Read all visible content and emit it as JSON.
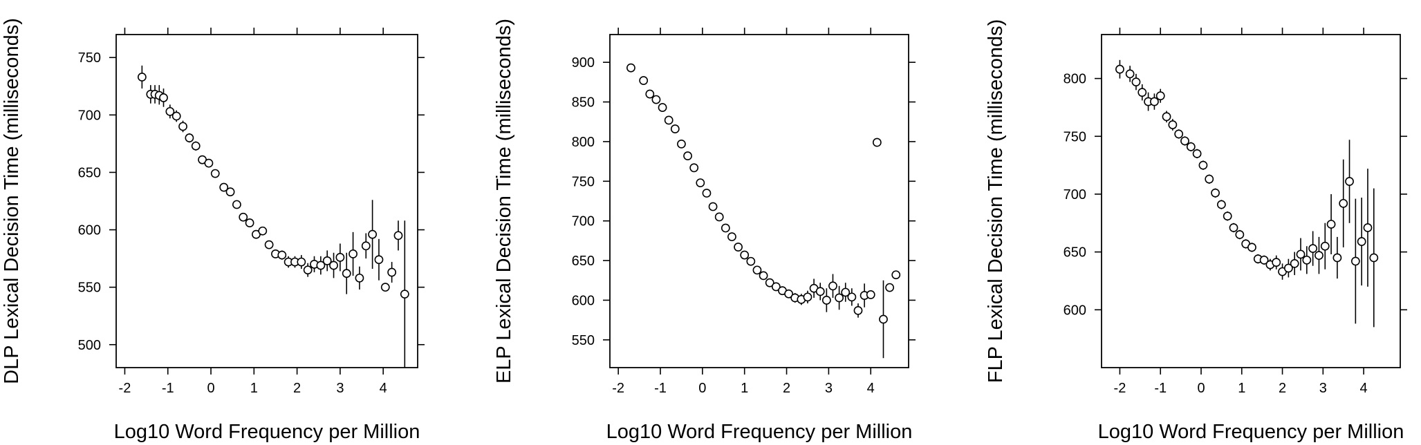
{
  "chart_data": [
    {
      "type": "scatter",
      "title": "",
      "xlabel": "Log10 Word Frequency per Million",
      "ylabel": "DLP Lexical Decision Time (milliseconds)",
      "xlim": [
        -2.2,
        4.8
      ],
      "ylim": [
        480,
        770
      ],
      "xticks": [
        "-2",
        "-1",
        "0",
        "1",
        "2",
        "3",
        "4"
      ],
      "yticks": [
        "500",
        "550",
        "600",
        "650",
        "700",
        "750"
      ],
      "points": [
        {
          "x": -1.6,
          "y": 733,
          "lo": 723,
          "hi": 743
        },
        {
          "x": -1.4,
          "y": 718,
          "lo": 710,
          "hi": 726
        },
        {
          "x": -1.3,
          "y": 718,
          "lo": 710,
          "hi": 726
        },
        {
          "x": -1.2,
          "y": 717,
          "lo": 709,
          "hi": 726
        },
        {
          "x": -1.1,
          "y": 715,
          "lo": 707,
          "hi": 723
        },
        {
          "x": -0.95,
          "y": 703,
          "lo": 697,
          "hi": 709
        },
        {
          "x": -0.8,
          "y": 699,
          "lo": 694,
          "hi": 704
        },
        {
          "x": -0.65,
          "y": 690,
          "lo": 685,
          "hi": 695
        },
        {
          "x": -0.5,
          "y": 680,
          "lo": 676,
          "hi": 684
        },
        {
          "x": -0.35,
          "y": 673,
          "lo": 669,
          "hi": 677
        },
        {
          "x": -0.2,
          "y": 661,
          "lo": 658,
          "hi": 664
        },
        {
          "x": -0.05,
          "y": 658,
          "lo": 655,
          "hi": 661
        },
        {
          "x": 0.1,
          "y": 649,
          "lo": 646,
          "hi": 652
        },
        {
          "x": 0.3,
          "y": 637,
          "lo": 634,
          "hi": 640
        },
        {
          "x": 0.45,
          "y": 633,
          "lo": 630,
          "hi": 636
        },
        {
          "x": 0.6,
          "y": 622,
          "lo": 619,
          "hi": 625
        },
        {
          "x": 0.75,
          "y": 611,
          "lo": 608,
          "hi": 614
        },
        {
          "x": 0.9,
          "y": 606,
          "lo": 603,
          "hi": 609
        },
        {
          "x": 1.05,
          "y": 596,
          "lo": 593,
          "hi": 599
        },
        {
          "x": 1.2,
          "y": 599,
          "lo": 596,
          "hi": 602
        },
        {
          "x": 1.35,
          "y": 587,
          "lo": 584,
          "hi": 590
        },
        {
          "x": 1.5,
          "y": 579,
          "lo": 576,
          "hi": 582
        },
        {
          "x": 1.65,
          "y": 578,
          "lo": 574,
          "hi": 582
        },
        {
          "x": 1.8,
          "y": 572,
          "lo": 567,
          "hi": 577
        },
        {
          "x": 1.95,
          "y": 572,
          "lo": 567,
          "hi": 577
        },
        {
          "x": 2.1,
          "y": 572,
          "lo": 566,
          "hi": 578
        },
        {
          "x": 2.25,
          "y": 565,
          "lo": 559,
          "hi": 571
        },
        {
          "x": 2.4,
          "y": 570,
          "lo": 563,
          "hi": 577
        },
        {
          "x": 2.55,
          "y": 569,
          "lo": 561,
          "hi": 577
        },
        {
          "x": 2.7,
          "y": 573,
          "lo": 564,
          "hi": 582
        },
        {
          "x": 2.85,
          "y": 569,
          "lo": 558,
          "hi": 580
        },
        {
          "x": 3.0,
          "y": 576,
          "lo": 564,
          "hi": 588
        },
        {
          "x": 3.15,
          "y": 562,
          "lo": 544,
          "hi": 580
        },
        {
          "x": 3.3,
          "y": 579,
          "lo": 560,
          "hi": 598
        },
        {
          "x": 3.45,
          "y": 558,
          "lo": 548,
          "hi": 568
        },
        {
          "x": 3.6,
          "y": 586,
          "lo": 575,
          "hi": 597
        },
        {
          "x": 3.75,
          "y": 596,
          "lo": 566,
          "hi": 626
        },
        {
          "x": 3.9,
          "y": 574,
          "lo": 556,
          "hi": 592
        },
        {
          "x": 4.05,
          "y": 550,
          "lo": null,
          "hi": null
        },
        {
          "x": 4.2,
          "y": 563,
          "lo": 554,
          "hi": 572
        },
        {
          "x": 4.35,
          "y": 595,
          "lo": 582,
          "hi": 608
        },
        {
          "x": 4.5,
          "y": 544,
          "lo": 480,
          "hi": 608
        }
      ]
    },
    {
      "type": "scatter",
      "title": "",
      "xlabel": "Log10 Word Frequency per Million",
      "ylabel": "ELP Lexical Decision Time (milliseconds)",
      "xlim": [
        -2.2,
        4.9
      ],
      "ylim": [
        515,
        935
      ],
      "xticks": [
        "-2",
        "-1",
        "0",
        "1",
        "2",
        "3",
        "4"
      ],
      "yticks": [
        "550",
        "600",
        "650",
        "700",
        "750",
        "800",
        "850",
        "900"
      ],
      "points": [
        {
          "x": -1.7,
          "y": 893,
          "lo": null,
          "hi": null
        },
        {
          "x": -1.4,
          "y": 877,
          "lo": null,
          "hi": null
        },
        {
          "x": -1.25,
          "y": 860,
          "lo": null,
          "hi": null
        },
        {
          "x": -1.1,
          "y": 853,
          "lo": null,
          "hi": null
        },
        {
          "x": -0.95,
          "y": 843,
          "lo": null,
          "hi": null
        },
        {
          "x": -0.8,
          "y": 827,
          "lo": null,
          "hi": null
        },
        {
          "x": -0.65,
          "y": 816,
          "lo": null,
          "hi": null
        },
        {
          "x": -0.5,
          "y": 797,
          "lo": null,
          "hi": null
        },
        {
          "x": -0.35,
          "y": 782,
          "lo": null,
          "hi": null
        },
        {
          "x": -0.2,
          "y": 767,
          "lo": null,
          "hi": null
        },
        {
          "x": -0.05,
          "y": 748,
          "lo": null,
          "hi": null
        },
        {
          "x": 0.1,
          "y": 735,
          "lo": null,
          "hi": null
        },
        {
          "x": 0.25,
          "y": 718,
          "lo": null,
          "hi": null
        },
        {
          "x": 0.4,
          "y": 705,
          "lo": null,
          "hi": null
        },
        {
          "x": 0.55,
          "y": 691,
          "lo": null,
          "hi": null
        },
        {
          "x": 0.7,
          "y": 680,
          "lo": null,
          "hi": null
        },
        {
          "x": 0.85,
          "y": 667,
          "lo": null,
          "hi": null
        },
        {
          "x": 1.0,
          "y": 657,
          "lo": null,
          "hi": null
        },
        {
          "x": 1.15,
          "y": 649,
          "lo": null,
          "hi": null
        },
        {
          "x": 1.3,
          "y": 638,
          "lo": null,
          "hi": null
        },
        {
          "x": 1.45,
          "y": 631,
          "lo": null,
          "hi": null
        },
        {
          "x": 1.6,
          "y": 622,
          "lo": null,
          "hi": null
        },
        {
          "x": 1.75,
          "y": 617,
          "lo": null,
          "hi": null
        },
        {
          "x": 1.9,
          "y": 612,
          "lo": null,
          "hi": null
        },
        {
          "x": 2.05,
          "y": 608,
          "lo": 603,
          "hi": 613
        },
        {
          "x": 2.2,
          "y": 603,
          "lo": 597,
          "hi": 609
        },
        {
          "x": 2.35,
          "y": 601,
          "lo": 594,
          "hi": 608
        },
        {
          "x": 2.5,
          "y": 604,
          "lo": 596,
          "hi": 612
        },
        {
          "x": 2.65,
          "y": 615,
          "lo": 603,
          "hi": 627
        },
        {
          "x": 2.8,
          "y": 611,
          "lo": 600,
          "hi": 622
        },
        {
          "x": 2.95,
          "y": 600,
          "lo": 585,
          "hi": 615
        },
        {
          "x": 3.1,
          "y": 618,
          "lo": 603,
          "hi": 633
        },
        {
          "x": 3.25,
          "y": 603,
          "lo": 588,
          "hi": 618
        },
        {
          "x": 3.4,
          "y": 610,
          "lo": 598,
          "hi": 622
        },
        {
          "x": 3.55,
          "y": 604,
          "lo": 593,
          "hi": 615
        },
        {
          "x": 3.7,
          "y": 587,
          "lo": 578,
          "hi": 596
        },
        {
          "x": 3.85,
          "y": 606,
          "lo": 591,
          "hi": 621
        },
        {
          "x": 4.0,
          "y": 607,
          "lo": null,
          "hi": null
        },
        {
          "x": 4.15,
          "y": 799,
          "lo": null,
          "hi": null
        },
        {
          "x": 4.3,
          "y": 576,
          "lo": 527,
          "hi": 625
        },
        {
          "x": 4.45,
          "y": 616,
          "lo": null,
          "hi": null
        },
        {
          "x": 4.6,
          "y": 632,
          "lo": null,
          "hi": null
        }
      ]
    },
    {
      "type": "scatter",
      "title": "",
      "xlabel": "Log10 Word Frequency per Million",
      "ylabel": "FLP Lexical Decision Time (milliseconds)",
      "xlim": [
        -2.45,
        4.9
      ],
      "ylim": [
        550,
        838
      ],
      "xticks": [
        "-2",
        "-1",
        "0",
        "1",
        "2",
        "3",
        "4"
      ],
      "yticks": [
        "600",
        "650",
        "700",
        "750",
        "800"
      ],
      "points": [
        {
          "x": -2.0,
          "y": 808,
          "lo": 800,
          "hi": 816
        },
        {
          "x": -1.75,
          "y": 804,
          "lo": 797,
          "hi": 811
        },
        {
          "x": -1.6,
          "y": 797,
          "lo": 790,
          "hi": 804
        },
        {
          "x": -1.45,
          "y": 788,
          "lo": 781,
          "hi": 795
        },
        {
          "x": -1.3,
          "y": 780,
          "lo": 772,
          "hi": 788
        },
        {
          "x": -1.15,
          "y": 780,
          "lo": 773,
          "hi": 787
        },
        {
          "x": -1.0,
          "y": 785,
          "lo": 779,
          "hi": 791
        },
        {
          "x": -0.85,
          "y": 767,
          "lo": 762,
          "hi": 772
        },
        {
          "x": -0.7,
          "y": 760,
          "lo": 755,
          "hi": 765
        },
        {
          "x": -0.55,
          "y": 752,
          "lo": 748,
          "hi": 756
        },
        {
          "x": -0.4,
          "y": 746,
          "lo": 742,
          "hi": 750
        },
        {
          "x": -0.25,
          "y": 741,
          "lo": 737,
          "hi": 745
        },
        {
          "x": -0.1,
          "y": 735,
          "lo": 731,
          "hi": 739
        },
        {
          "x": 0.05,
          "y": 725,
          "lo": 721,
          "hi": 729
        },
        {
          "x": 0.2,
          "y": 713,
          "lo": 709,
          "hi": 717
        },
        {
          "x": 0.35,
          "y": 701,
          "lo": 697,
          "hi": 705
        },
        {
          "x": 0.5,
          "y": 691,
          "lo": 687,
          "hi": 695
        },
        {
          "x": 0.65,
          "y": 681,
          "lo": 677,
          "hi": 685
        },
        {
          "x": 0.8,
          "y": 671,
          "lo": 667,
          "hi": 675
        },
        {
          "x": 0.95,
          "y": 665,
          "lo": 661,
          "hi": 669
        },
        {
          "x": 1.1,
          "y": 657,
          "lo": 653,
          "hi": 661
        },
        {
          "x": 1.25,
          "y": 654,
          "lo": 650,
          "hi": 658
        },
        {
          "x": 1.4,
          "y": 644,
          "lo": 640,
          "hi": 648
        },
        {
          "x": 1.55,
          "y": 643,
          "lo": 639,
          "hi": 647
        },
        {
          "x": 1.7,
          "y": 639,
          "lo": 634,
          "hi": 644
        },
        {
          "x": 1.85,
          "y": 641,
          "lo": 635,
          "hi": 647
        },
        {
          "x": 2.0,
          "y": 633,
          "lo": 626,
          "hi": 640
        },
        {
          "x": 2.15,
          "y": 636,
          "lo": 628,
          "hi": 644
        },
        {
          "x": 2.3,
          "y": 640,
          "lo": 630,
          "hi": 650
        },
        {
          "x": 2.45,
          "y": 648,
          "lo": 634,
          "hi": 662
        },
        {
          "x": 2.6,
          "y": 643,
          "lo": 631,
          "hi": 655
        },
        {
          "x": 2.75,
          "y": 653,
          "lo": 638,
          "hi": 668
        },
        {
          "x": 2.9,
          "y": 647,
          "lo": 631,
          "hi": 663
        },
        {
          "x": 3.05,
          "y": 655,
          "lo": 635,
          "hi": 675
        },
        {
          "x": 3.2,
          "y": 674,
          "lo": 648,
          "hi": 700
        },
        {
          "x": 3.35,
          "y": 645,
          "lo": 627,
          "hi": 663
        },
        {
          "x": 3.5,
          "y": 692,
          "lo": 654,
          "hi": 730
        },
        {
          "x": 3.65,
          "y": 711,
          "lo": 675,
          "hi": 747
        },
        {
          "x": 3.8,
          "y": 642,
          "lo": 588,
          "hi": 696
        },
        {
          "x": 3.95,
          "y": 659,
          "lo": 621,
          "hi": 697
        },
        {
          "x": 4.1,
          "y": 671,
          "lo": 620,
          "hi": 722
        },
        {
          "x": 4.25,
          "y": 645,
          "lo": 585,
          "hi": 705
        }
      ]
    }
  ]
}
